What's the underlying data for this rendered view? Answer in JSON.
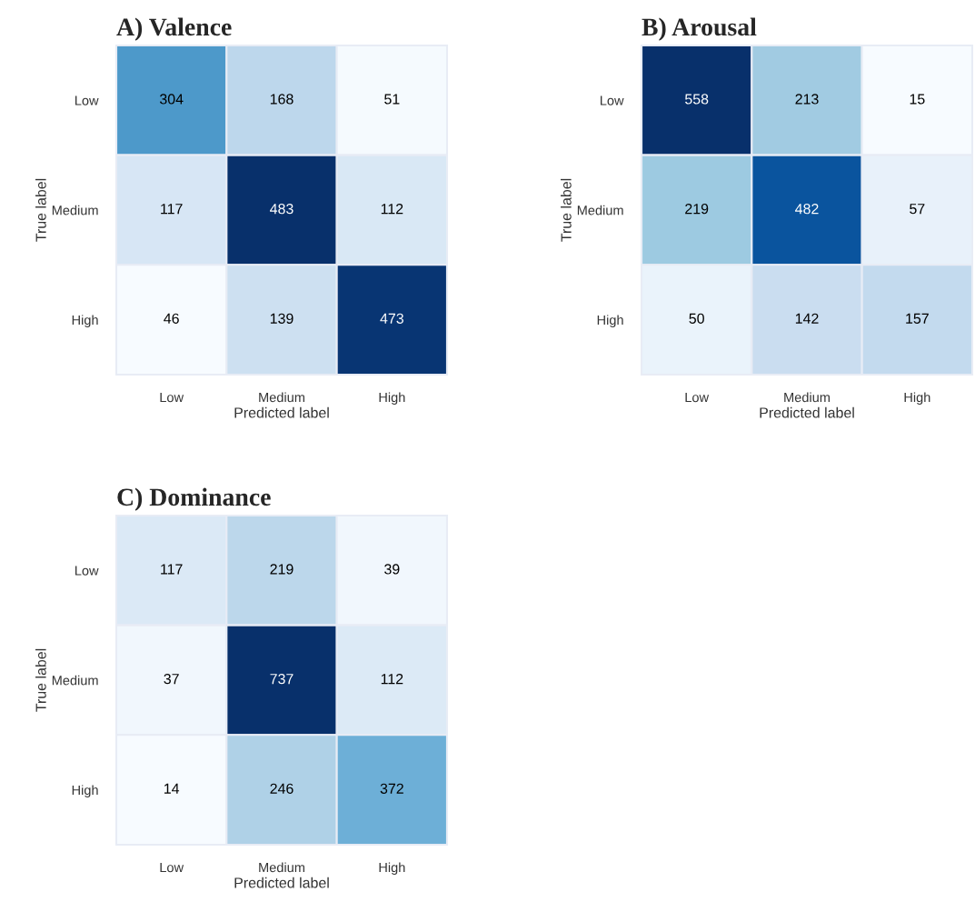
{
  "chart_data": [
    {
      "type": "heatmap",
      "title": "A) Valence",
      "xlabel": "Predicted label",
      "ylabel": "True label",
      "categories": [
        "Low",
        "Medium",
        "High"
      ],
      "y_categories": [
        "Low",
        "Medium",
        "High"
      ],
      "cells": [
        [
          304,
          168,
          51
        ],
        [
          117,
          483,
          112
        ],
        [
          46,
          139,
          473
        ]
      ],
      "data_labels": true
    },
    {
      "type": "heatmap",
      "title": "B) Arousal",
      "xlabel": "Predicted label",
      "ylabel": "True label",
      "categories": [
        "Low",
        "Medium",
        "High"
      ],
      "y_categories": [
        "Low",
        "Medium",
        "High"
      ],
      "cells": [
        [
          558,
          213,
          15
        ],
        [
          219,
          482,
          57
        ],
        [
          50,
          142,
          157
        ]
      ],
      "data_labels": true
    },
    {
      "type": "heatmap",
      "title": "C) Dominance",
      "xlabel": "Predicted label",
      "ylabel": "True label",
      "categories": [
        "Low",
        "Medium",
        "High"
      ],
      "y_categories": [
        "Low",
        "Medium",
        "High"
      ],
      "cells": [
        [
          117,
          219,
          39
        ],
        [
          37,
          737,
          112
        ],
        [
          14,
          246,
          372
        ]
      ],
      "data_labels": true
    }
  ]
}
